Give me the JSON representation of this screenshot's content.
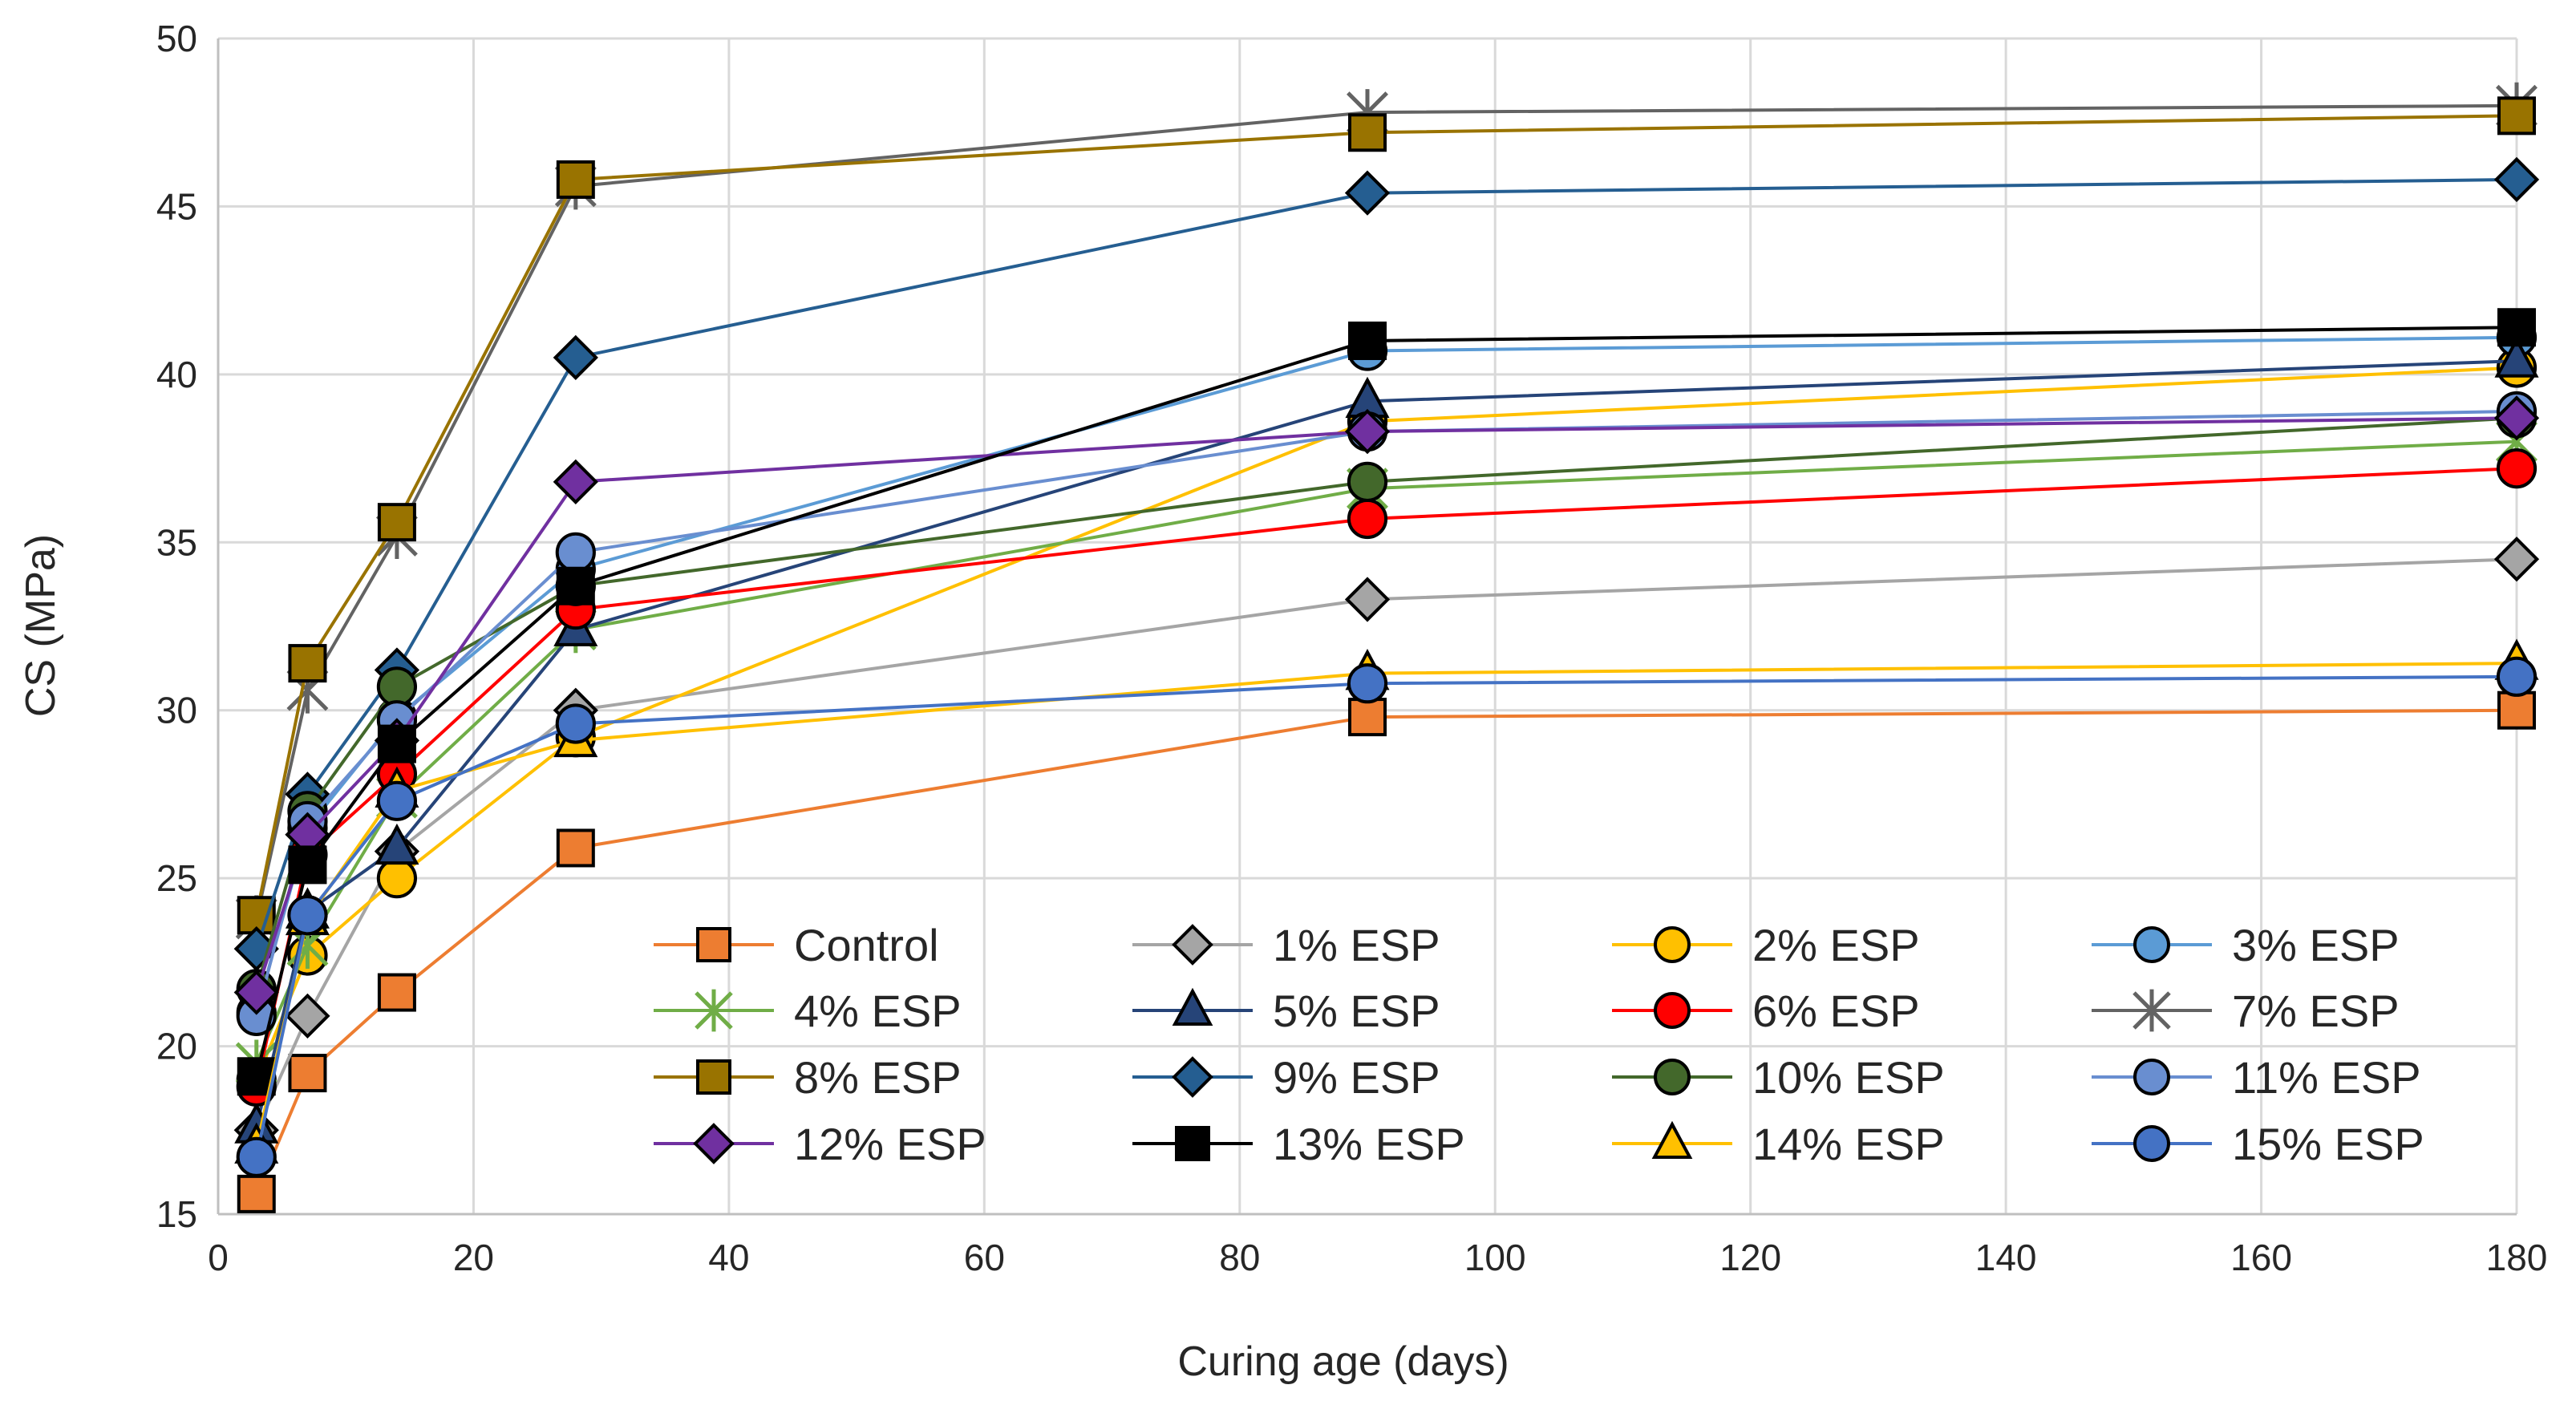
{
  "chart_data": {
    "type": "line",
    "title": "",
    "xlabel": "Curing age (days)",
    "ylabel": "CS (MPa)",
    "xlim": [
      0,
      180
    ],
    "ylim": [
      15,
      50
    ],
    "xticks": [
      0,
      20,
      40,
      60,
      80,
      100,
      120,
      140,
      160,
      180
    ],
    "yticks": [
      15,
      20,
      25,
      30,
      35,
      40,
      45,
      50
    ],
    "grid": true,
    "legend_position": "bottom-right inside plot",
    "x": [
      3,
      7,
      14,
      28,
      90,
      180
    ],
    "series": [
      {
        "name": "Control",
        "values": [
          15.6,
          19.2,
          21.6,
          25.9,
          29.8,
          30.0
        ],
        "color": "#ED7D31",
        "marker": "square",
        "marker_fill": "#ED7D31"
      },
      {
        "name": "1% ESP",
        "values": [
          17.5,
          20.9,
          25.8,
          30.0,
          33.3,
          34.5
        ],
        "color": "#A5A5A5",
        "marker": "diamond",
        "marker_fill": "#A5A5A5"
      },
      {
        "name": "2% ESP",
        "values": [
          19.0,
          22.7,
          25.0,
          29.2,
          38.6,
          40.2
        ],
        "color": "#FFC000",
        "marker": "circle",
        "marker_fill": "#FFC000"
      },
      {
        "name": "3% ESP",
        "values": [
          21.0,
          26.5,
          29.8,
          34.2,
          40.7,
          41.1
        ],
        "color": "#5B9BD5",
        "marker": "circle",
        "marker_fill": "#5B9BD5"
      },
      {
        "name": "4% ESP",
        "values": [
          19.5,
          23.0,
          27.4,
          32.4,
          36.6,
          38.0
        ],
        "color": "#70AD47",
        "marker": "star",
        "marker_fill": "#70AD47"
      },
      {
        "name": "5% ESP",
        "values": [
          17.6,
          24.0,
          25.9,
          32.4,
          39.2,
          40.4
        ],
        "color": "#264478",
        "marker": "triangle",
        "marker_fill": "#264478"
      },
      {
        "name": "6% ESP",
        "values": [
          18.8,
          25.7,
          28.1,
          33.0,
          35.7,
          37.2
        ],
        "color": "#FF0000",
        "marker": "circle",
        "marker_fill": "#FF0000"
      },
      {
        "name": "7% ESP",
        "values": [
          23.8,
          30.6,
          35.2,
          45.6,
          47.8,
          48.0
        ],
        "color": "#636363",
        "marker": "star",
        "marker_fill": "#636363"
      },
      {
        "name": "8% ESP",
        "values": [
          23.9,
          31.4,
          35.6,
          45.8,
          47.2,
          47.7
        ],
        "color": "#997300",
        "marker": "square",
        "marker_fill": "#997300"
      },
      {
        "name": "9% ESP",
        "values": [
          22.9,
          27.5,
          31.2,
          40.5,
          45.4,
          45.8
        ],
        "color": "#255E91",
        "marker": "diamond",
        "marker_fill": "#255E91"
      },
      {
        "name": "10% ESP",
        "values": [
          21.7,
          27.0,
          30.7,
          33.7,
          36.8,
          38.7
        ],
        "color": "#43682B",
        "marker": "circle",
        "marker_fill": "#43682B"
      },
      {
        "name": "11% ESP",
        "values": [
          20.9,
          26.7,
          29.7,
          34.7,
          38.3,
          38.9
        ],
        "color": "#698ED0",
        "marker": "circle",
        "marker_fill": "#698ED0"
      },
      {
        "name": "12% ESP",
        "values": [
          21.6,
          26.3,
          29.1,
          36.8,
          38.3,
          38.7
        ],
        "color": "#7030A0",
        "marker": "diamond",
        "marker_fill": "#7030A0"
      },
      {
        "name": "13% ESP",
        "values": [
          19.1,
          25.4,
          29.0,
          33.7,
          41.0,
          41.4
        ],
        "color": "#000000",
        "marker": "square",
        "marker_fill": "#000000"
      },
      {
        "name": "14% ESP",
        "values": [
          17.0,
          23.8,
          27.6,
          29.1,
          31.1,
          31.4
        ],
        "color": "#FFC000",
        "marker": "triangle",
        "marker_fill": "#FFC000"
      },
      {
        "name": "15% ESP",
        "values": [
          16.7,
          23.9,
          27.3,
          29.6,
          30.8,
          31.0
        ],
        "color": "#4472C4",
        "marker": "circle",
        "marker_fill": "#4472C4"
      }
    ]
  }
}
